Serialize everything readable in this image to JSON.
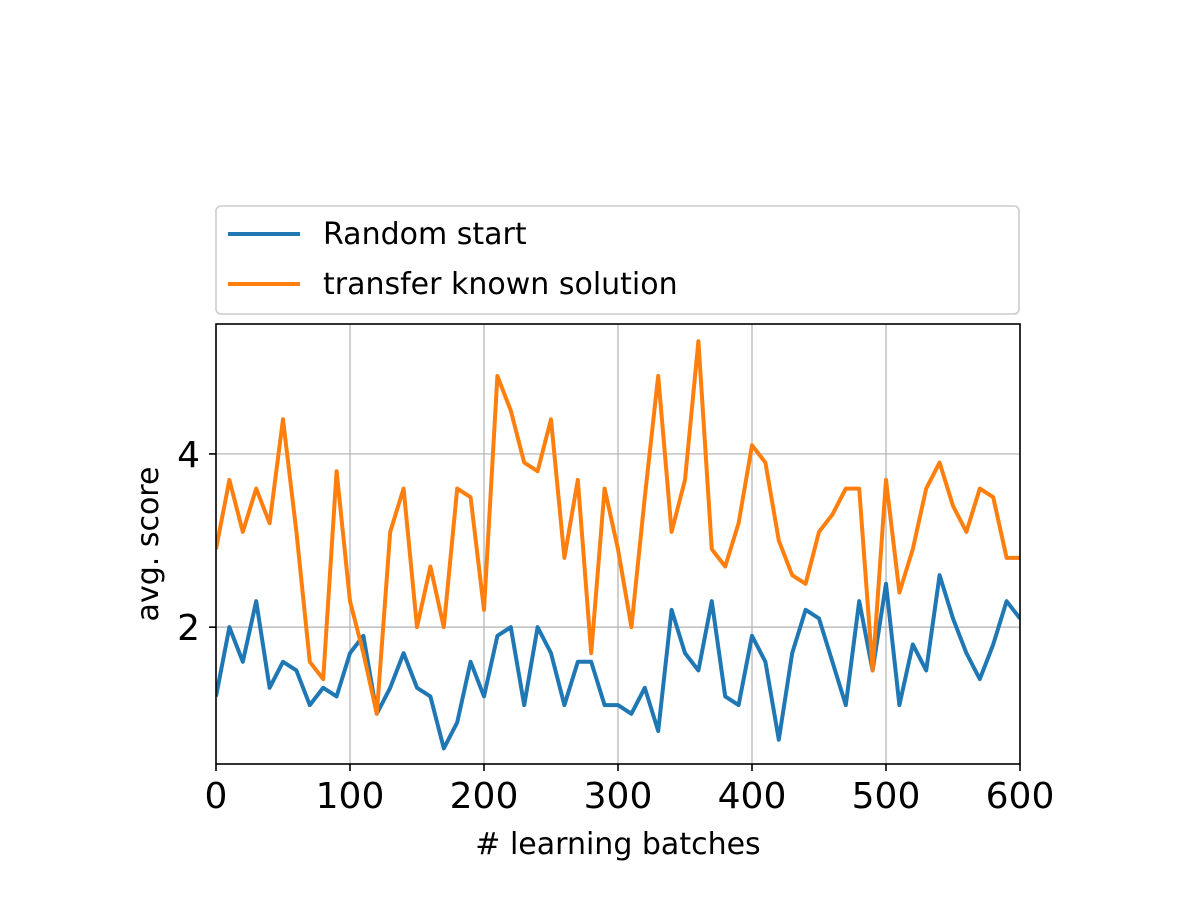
{
  "chart_data": {
    "type": "line",
    "title": "",
    "xlabel": "# learning batches",
    "ylabel": "avg. score",
    "xlim": [
      0,
      600
    ],
    "ylim": [
      0.42,
      5.5
    ],
    "xticks": [
      0,
      100,
      200,
      300,
      400,
      500,
      600
    ],
    "yticks": [
      2,
      4
    ],
    "grid": true,
    "legend_position": "above plot",
    "x": [
      0,
      10,
      20,
      30,
      40,
      50,
      60,
      70,
      80,
      90,
      100,
      110,
      120,
      130,
      140,
      150,
      160,
      170,
      180,
      190,
      200,
      210,
      220,
      230,
      240,
      250,
      260,
      270,
      280,
      290,
      300,
      310,
      320,
      330,
      340,
      350,
      360,
      370,
      380,
      390,
      400,
      410,
      420,
      430,
      440,
      450,
      460,
      470,
      480,
      490,
      500,
      510,
      520,
      530,
      540,
      550,
      560,
      570,
      580,
      590,
      600
    ],
    "series": [
      {
        "name": "Random start",
        "color": "#1f77b4",
        "values": [
          1.2,
          2.0,
          1.6,
          2.3,
          1.3,
          1.6,
          1.5,
          1.1,
          1.3,
          1.2,
          1.7,
          1.9,
          1.0,
          1.3,
          1.7,
          1.3,
          1.2,
          0.6,
          0.9,
          1.6,
          1.2,
          1.9,
          2.0,
          1.1,
          2.0,
          1.7,
          1.1,
          1.6,
          1.6,
          1.1,
          1.1,
          1.0,
          1.3,
          0.8,
          2.2,
          1.7,
          1.5,
          2.3,
          1.2,
          1.1,
          1.9,
          1.6,
          0.7,
          1.7,
          2.2,
          2.1,
          1.6,
          1.1,
          2.3,
          1.5,
          2.5,
          1.1,
          1.8,
          1.5,
          2.6,
          2.1,
          1.7,
          1.4,
          1.8,
          2.3,
          2.1
        ]
      },
      {
        "name": "transfer known solution",
        "color": "#ff7f0e",
        "values": [
          2.9,
          3.7,
          3.1,
          3.6,
          3.2,
          4.4,
          3.1,
          1.6,
          1.4,
          3.8,
          2.3,
          1.7,
          1.0,
          3.1,
          3.6,
          2.0,
          2.7,
          2.0,
          3.6,
          3.5,
          2.2,
          4.9,
          4.5,
          3.9,
          3.8,
          4.4,
          2.8,
          3.7,
          1.7,
          3.6,
          2.9,
          2.0,
          3.5,
          4.9,
          3.1,
          3.7,
          5.3,
          2.9,
          2.7,
          3.2,
          4.1,
          3.9,
          3.0,
          2.6,
          2.5,
          3.1,
          3.3,
          3.6,
          3.6,
          1.5,
          3.7,
          2.4,
          2.9,
          3.6,
          3.9,
          3.4,
          3.1,
          3.6,
          3.5,
          2.8,
          2.8
        ]
      }
    ]
  }
}
